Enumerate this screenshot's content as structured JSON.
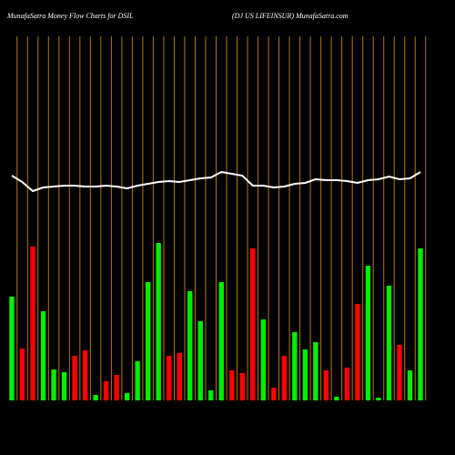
{
  "chart_data": {
    "type": "bar",
    "title": "MunafaSatra  Money Flow  Charts for DSIL",
    "subtitle": "(DJ US LIFEINSUR) MunafaSatra.com",
    "categories": [
      null,
      null,
      null,
      null,
      null,
      null,
      null,
      null,
      null,
      null,
      null,
      null,
      null,
      null,
      null,
      null,
      null,
      null,
      null,
      null,
      null,
      null,
      null,
      null,
      null,
      null,
      null,
      null,
      null,
      null,
      null,
      null,
      null,
      null,
      null,
      null,
      null,
      null,
      null,
      null
    ],
    "values": [
      114,
      57,
      169,
      98,
      34,
      31,
      49,
      55,
      6,
      21,
      28,
      8,
      43,
      130,
      173,
      49,
      52,
      120,
      87,
      11,
      130,
      33,
      30,
      167,
      89,
      14,
      49,
      75,
      56,
      64,
      33,
      4,
      36,
      106,
      148,
      3,
      126,
      61,
      33,
      167
    ],
    "colors": [
      "#00ee00",
      "#ff0000",
      "#ff0000",
      "#00ee00",
      "#00ee00",
      "#00ee00",
      "#ff0000",
      "#ff0000",
      "#00ee00",
      "#ff0000",
      "#ff0000",
      "#00ee00",
      "#00ee00",
      "#00ee00",
      "#00ee00",
      "#ff0000",
      "#ff0000",
      "#00ee00",
      "#00ee00",
      "#00ee00",
      "#00ee00",
      "#ff0000",
      "#ff0000",
      "#ff0000",
      "#00ee00",
      "#ff0000",
      "#ff0000",
      "#00ee00",
      "#00ee00",
      "#00ee00",
      "#ff0000",
      "#00ee00",
      "#ff0000",
      "#ff0000",
      "#00ee00",
      "#00ee00",
      "#00ee00",
      "#ff0000",
      "#00ee00",
      "#00ee00"
    ],
    "line": {
      "color": "#ffffff",
      "values": [
        247,
        240,
        230,
        234,
        235,
        236,
        236,
        235,
        235,
        236,
        235,
        233,
        236,
        238,
        240,
        241,
        240,
        242,
        244,
        245,
        251,
        249,
        247,
        236,
        236,
        234,
        235,
        238,
        239,
        243,
        242,
        242,
        241,
        239,
        242,
        243,
        246,
        243,
        244,
        251
      ]
    },
    "ylim": [
      0,
      400
    ]
  }
}
